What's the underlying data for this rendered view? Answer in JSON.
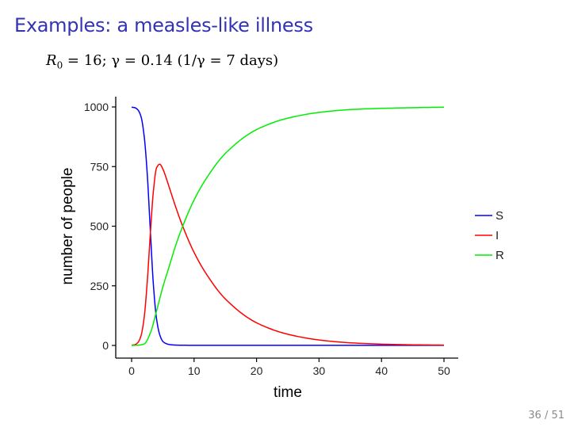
{
  "slide": {
    "title": "Examples: a measles-like illness",
    "subtitle_parts": {
      "r0_symbol": "R",
      "r0_sub": "0",
      "r0_value": " = 16; ",
      "gamma_part": "γ = 0.14 (1/γ = 7 days)"
    },
    "page_number": "36 / 51"
  },
  "chart_data": {
    "type": "line",
    "title": "",
    "xlabel": "time",
    "ylabel": "number of people",
    "xlim": [
      0,
      50
    ],
    "ylim": [
      0,
      1000
    ],
    "xticks": [
      0,
      10,
      20,
      30,
      40,
      50
    ],
    "yticks": [
      0,
      250,
      500,
      750,
      1000
    ],
    "grid": false,
    "legend_position": "right",
    "series": [
      {
        "name": "S",
        "color": "#0000ff",
        "x": [
          0,
          0.5,
          1,
          1.5,
          2,
          2.5,
          3,
          3.5,
          4,
          4.5,
          5,
          5.5,
          6,
          7,
          8,
          10,
          15,
          20,
          30,
          40,
          50
        ],
        "y": [
          999,
          997,
          988,
          960,
          880,
          720,
          480,
          250,
          110,
          45,
          17,
          8,
          4,
          1.5,
          0.8,
          0.5,
          0.4,
          0.4,
          0.4,
          0.4,
          0.4
        ]
      },
      {
        "name": "I",
        "color": "#ff0000",
        "x": [
          0,
          0.5,
          1,
          1.5,
          2,
          2.5,
          3,
          3.5,
          4,
          4.5,
          5,
          5.5,
          6,
          7,
          8,
          10,
          12,
          15,
          20,
          25,
          30,
          35,
          40,
          45,
          50
        ],
        "y": [
          1,
          3,
          12,
          40,
          115,
          265,
          470,
          650,
          745,
          760,
          740,
          705,
          665,
          585,
          512,
          390,
          298,
          195,
          95,
          47,
          23,
          11,
          5.5,
          2.7,
          1.3
        ]
      },
      {
        "name": "R",
        "color": "#00ee00",
        "x": [
          0,
          1,
          2,
          3,
          4,
          5,
          6,
          7,
          8,
          10,
          12,
          15,
          20,
          25,
          30,
          35,
          40,
          45,
          50
        ],
        "y": [
          0,
          1,
          6,
          52,
          145,
          245,
          330,
          415,
          488,
          610,
          702,
          805,
          905,
          953,
          977,
          989,
          994,
          997,
          999
        ]
      }
    ]
  }
}
